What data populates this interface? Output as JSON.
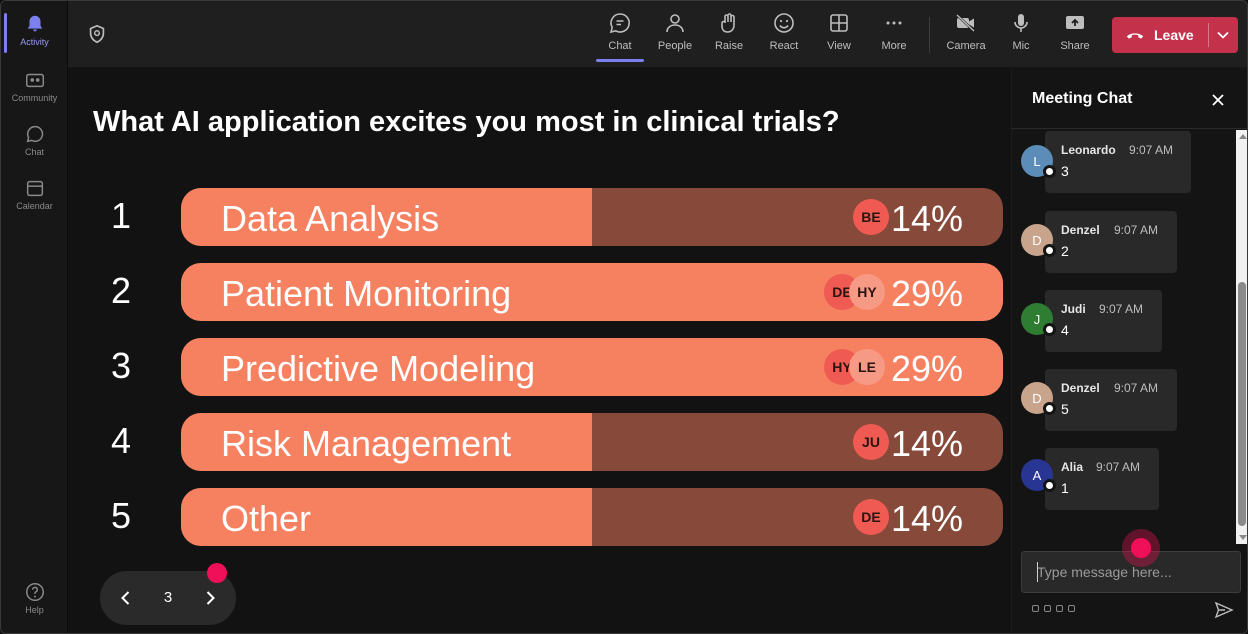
{
  "rail": {
    "items": [
      {
        "label": "Activity",
        "icon": "bell-icon",
        "active": true
      },
      {
        "label": "Community",
        "icon": "community-icon",
        "active": false
      },
      {
        "label": "Chat",
        "icon": "chat-icon",
        "active": false
      },
      {
        "label": "Calendar",
        "icon": "calendar-icon",
        "active": false
      }
    ],
    "help_label": "Help"
  },
  "toolbar": {
    "chat": "Chat",
    "people": "People",
    "raise": "Raise",
    "react": "React",
    "view": "View",
    "more": "More",
    "camera": "Camera",
    "mic": "Mic",
    "share": "Share",
    "leave": "Leave"
  },
  "poll": {
    "question": "What AI application excites you most in clinical trials?",
    "options": [
      {
        "num": "1",
        "label": "Data Analysis",
        "percent": "14%",
        "fill": 0.5,
        "avatars": [
          "BE"
        ]
      },
      {
        "num": "2",
        "label": "Patient Monitoring",
        "percent": "29%",
        "fill": 1.0,
        "avatars": [
          "DE",
          "HY"
        ]
      },
      {
        "num": "3",
        "label": "Predictive Modeling",
        "percent": "29%",
        "fill": 1.0,
        "avatars": [
          "HY",
          "LE"
        ]
      },
      {
        "num": "4",
        "label": "Risk Management",
        "percent": "14%",
        "fill": 0.5,
        "avatars": [
          "JU"
        ]
      },
      {
        "num": "5",
        "label": "Other",
        "percent": "14%",
        "fill": 0.5,
        "avatars": [
          "DE"
        ]
      }
    ],
    "page": "3"
  },
  "chat": {
    "title": "Meeting Chat",
    "messages": [
      {
        "initial": "L",
        "name": "Leonardo",
        "time": "9:07 AM",
        "text": "3",
        "color": "#5b8db8"
      },
      {
        "initial": "D",
        "name": "Denzel",
        "time": "9:07 AM",
        "text": "2",
        "color": "#c9a48c"
      },
      {
        "initial": "J",
        "name": "Judi",
        "time": "9:07 AM",
        "text": "4",
        "color": "#2e7d32"
      },
      {
        "initial": "D",
        "name": "Denzel",
        "time": "9:07 AM",
        "text": "5",
        "color": "#c9a48c"
      },
      {
        "initial": "A",
        "name": "Alia",
        "time": "9:07 AM",
        "text": "1",
        "color": "#283593"
      }
    ],
    "input_placeholder": "Type message here..."
  },
  "colors": {
    "bar_fill": "#f58161",
    "bar_track": "#86493a",
    "leave_red": "#c4314b",
    "accent": "#7b7ff0",
    "click_marker": "#f0105a"
  }
}
